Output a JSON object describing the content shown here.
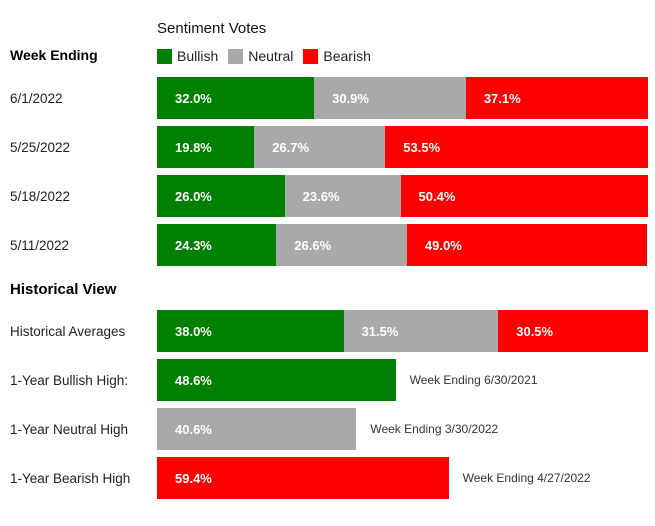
{
  "colors": {
    "bullish": "#008000",
    "neutral": "#a9a9a9",
    "bearish": "#ff0000"
  },
  "header": {
    "week_ending_label": "Week Ending",
    "title": "Sentiment Votes",
    "legend": [
      {
        "label": "Bullish"
      },
      {
        "label": "Neutral"
      },
      {
        "label": "Bearish"
      }
    ]
  },
  "weekly_rows": [
    {
      "date": "6/1/2022",
      "bullish": {
        "value": 32.0,
        "label": "32.0%"
      },
      "neutral": {
        "value": 30.9,
        "label": "30.9%"
      },
      "bearish": {
        "value": 37.1,
        "label": "37.1%"
      }
    },
    {
      "date": "5/25/2022",
      "bullish": {
        "value": 19.8,
        "label": "19.8%"
      },
      "neutral": {
        "value": 26.7,
        "label": "26.7%"
      },
      "bearish": {
        "value": 53.5,
        "label": "53.5%"
      }
    },
    {
      "date": "5/18/2022",
      "bullish": {
        "value": 26.0,
        "label": "26.0%"
      },
      "neutral": {
        "value": 23.6,
        "label": "23.6%"
      },
      "bearish": {
        "value": 50.4,
        "label": "50.4%"
      }
    },
    {
      "date": "5/11/2022",
      "bullish": {
        "value": 24.3,
        "label": "24.3%"
      },
      "neutral": {
        "value": 26.6,
        "label": "26.6%"
      },
      "bearish": {
        "value": 49.0,
        "label": "49.0%"
      }
    }
  ],
  "historical": {
    "section_title": "Historical View",
    "averages": {
      "label": "Historical Averages",
      "bullish": {
        "value": 38.0,
        "label": "38.0%"
      },
      "neutral": {
        "value": 31.5,
        "label": "31.5%"
      },
      "bearish": {
        "value": 30.5,
        "label": "30.5%"
      }
    },
    "highs": [
      {
        "label": "1-Year Bullish High:",
        "value": 48.6,
        "pct_label": "48.6%",
        "annotation": "Week Ending 6/30/2021"
      },
      {
        "label": "1-Year Neutral High",
        "value": 40.6,
        "pct_label": "40.6%",
        "annotation": "Week Ending 3/30/2022"
      },
      {
        "label": "1-Year Bearish High",
        "value": 59.4,
        "pct_label": "59.4%",
        "annotation": "Week Ending 4/27/2022"
      }
    ]
  },
  "chart_data": [
    {
      "type": "bar",
      "subtype": "stacked-horizontal",
      "title": "Sentiment Votes",
      "categories": [
        "6/1/2022",
        "5/25/2022",
        "5/18/2022",
        "5/11/2022",
        "Historical Averages"
      ],
      "series": [
        {
          "name": "Bullish",
          "color": "#008000",
          "values": [
            32.0,
            19.8,
            26.0,
            24.3,
            38.0
          ]
        },
        {
          "name": "Neutral",
          "color": "#a9a9a9",
          "values": [
            30.9,
            26.7,
            23.6,
            26.6,
            31.5
          ]
        },
        {
          "name": "Bearish",
          "color": "#ff0000",
          "values": [
            37.1,
            53.5,
            50.4,
            49.0,
            30.5
          ]
        }
      ],
      "xlim": [
        0,
        100
      ],
      "unit": "%",
      "legend_position": "top",
      "grid": false
    },
    {
      "type": "bar",
      "subtype": "horizontal",
      "title": "Historical View — 1-Year Highs",
      "categories": [
        "1-Year Bullish High:",
        "1-Year Neutral High",
        "1-Year Bearish High"
      ],
      "values": [
        48.6,
        40.6,
        59.4
      ],
      "bar_colors": [
        "#008000",
        "#a9a9a9",
        "#ff0000"
      ],
      "annotations": [
        "Week Ending 6/30/2021",
        "Week Ending 3/30/2022",
        "Week Ending 4/27/2022"
      ],
      "xlim": [
        0,
        100
      ],
      "unit": "%",
      "grid": false
    }
  ]
}
